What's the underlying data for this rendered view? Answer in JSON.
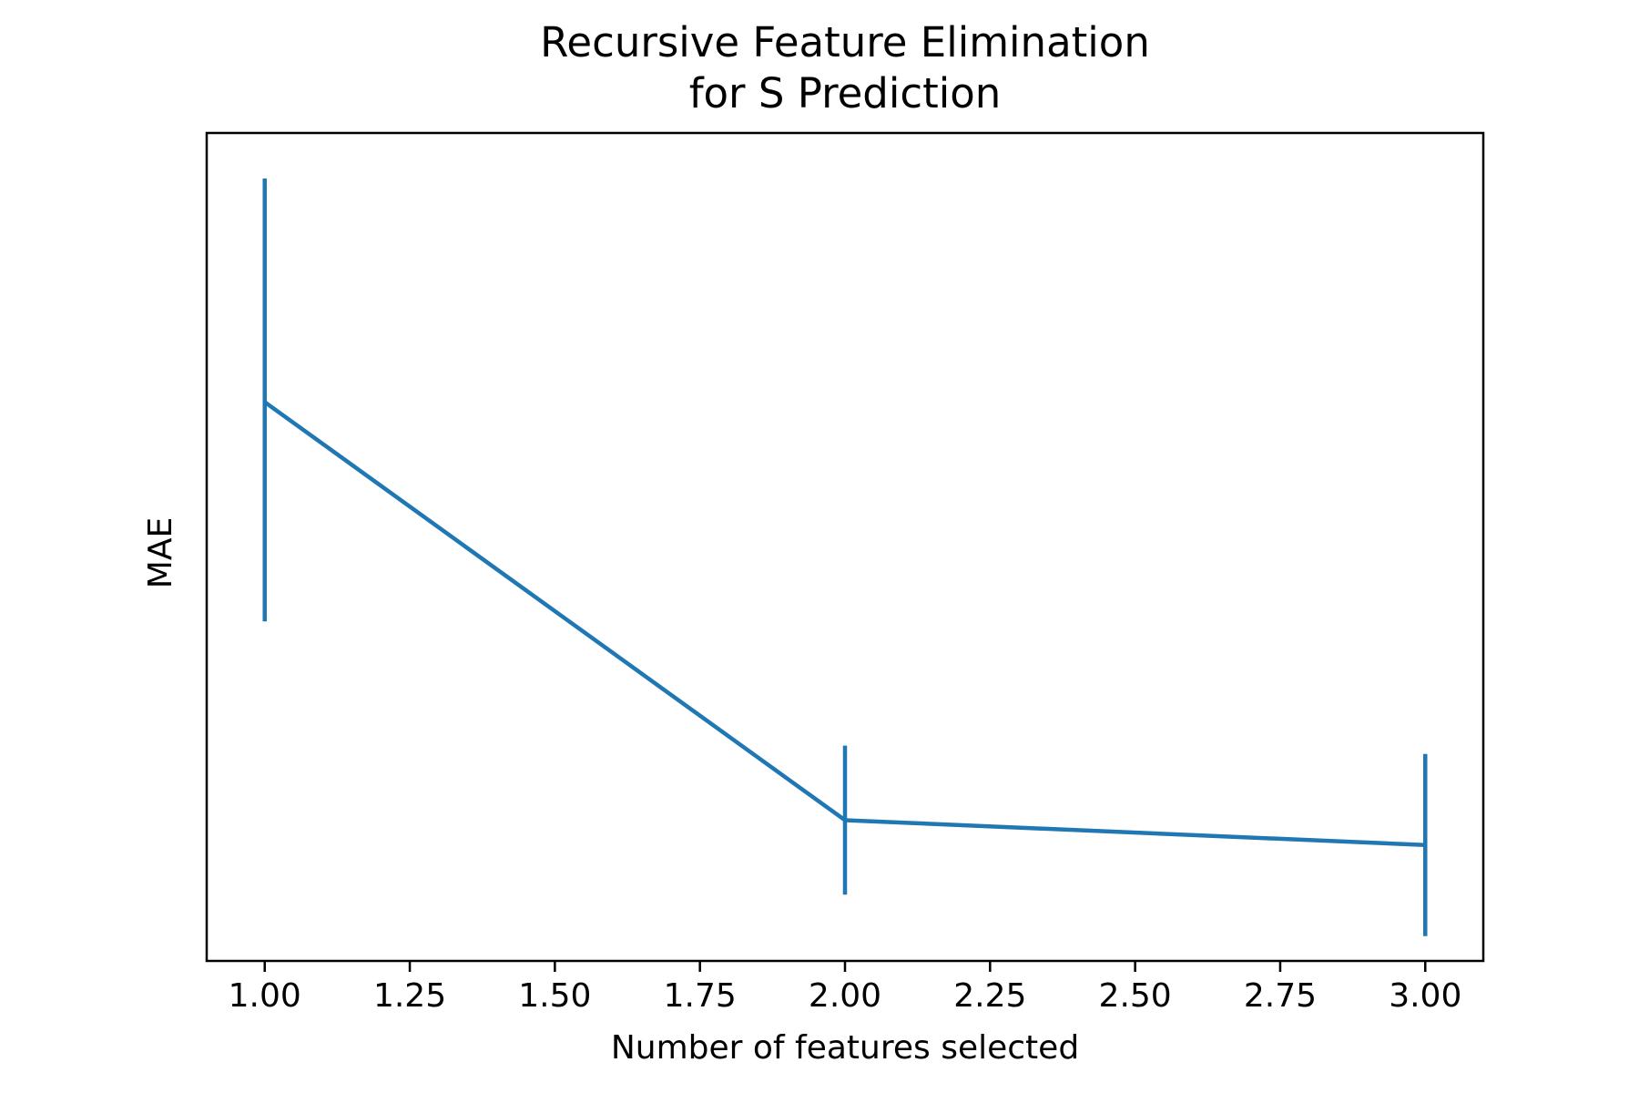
{
  "chart_data": {
    "type": "line",
    "title": [
      "Recursive Feature Elimination",
      "for S Prediction"
    ],
    "xlabel": "Number of features selected",
    "ylabel": "MAE",
    "x_ticks": [
      "1.00",
      "1.25",
      "1.50",
      "1.75",
      "2.00",
      "2.25",
      "2.50",
      "2.75",
      "3.00"
    ],
    "x_tick_values": [
      1.0,
      1.25,
      1.5,
      1.75,
      2.0,
      2.25,
      2.5,
      2.75,
      3.0
    ],
    "xlim": [
      0.9,
      3.1
    ],
    "ylim": [
      0.01,
      1.01
    ],
    "y_ticks_shown": false,
    "grid": false,
    "legend": "none",
    "series": [
      {
        "x": [
          1,
          2,
          3
        ],
        "y": [
          0.685,
          0.18,
          0.15
        ],
        "yerr_low": [
          0.42,
          0.09,
          0.04
        ],
        "yerr_high": [
          0.955,
          0.27,
          0.26
        ]
      }
    ],
    "color": "#1f77b4"
  }
}
